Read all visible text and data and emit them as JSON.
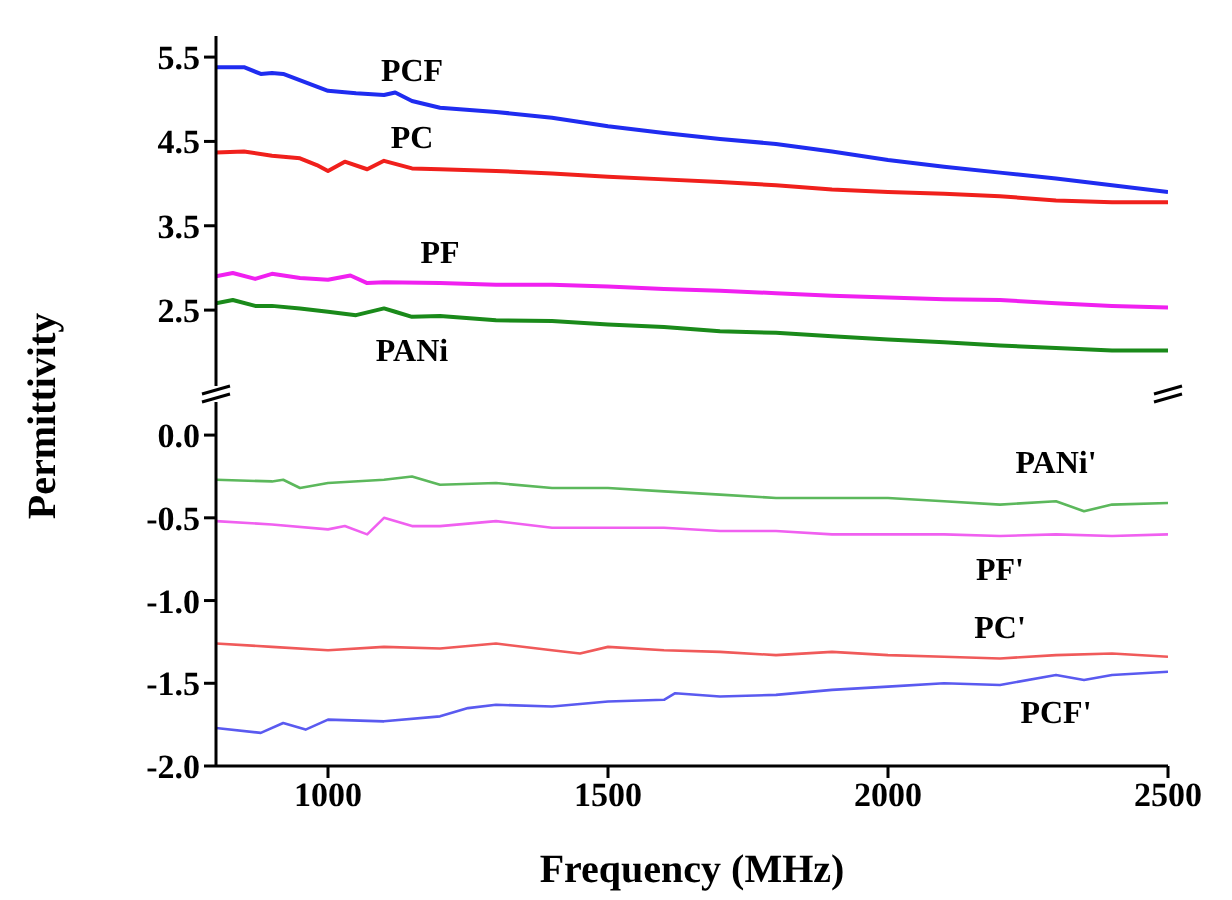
{
  "chart_data": [
    {
      "type": "line",
      "ylabel": "Permittivity",
      "xlim": [
        800,
        2500
      ],
      "ylim": [
        1.6,
        5.75
      ],
      "yticks": [
        2.5,
        3.5,
        4.5,
        5.5
      ],
      "tick_labels": "y",
      "marker": "none",
      "line_style": "solid",
      "series": [
        {
          "name": "PCF",
          "color": "#1f2cf0",
          "x": [
            800,
            850,
            880,
            900,
            920,
            1000,
            1050,
            1100,
            1120,
            1150,
            1200,
            1300,
            1400,
            1500,
            1600,
            1700,
            1800,
            1900,
            2000,
            2100,
            2200,
            2300,
            2400,
            2500
          ],
          "values": [
            5.38,
            5.38,
            5.3,
            5.31,
            5.3,
            5.1,
            5.07,
            5.05,
            5.08,
            4.98,
            4.9,
            4.85,
            4.78,
            4.68,
            4.6,
            4.53,
            4.47,
            4.38,
            4.28,
            4.2,
            4.13,
            4.06,
            3.98,
            3.9
          ]
        },
        {
          "name": "PC",
          "color": "#f0201c",
          "x": [
            800,
            850,
            900,
            950,
            980,
            1000,
            1030,
            1070,
            1100,
            1150,
            1200,
            1300,
            1400,
            1500,
            1600,
            1700,
            1800,
            1900,
            2000,
            2100,
            2200,
            2300,
            2400,
            2500
          ],
          "values": [
            4.37,
            4.38,
            4.33,
            4.3,
            4.22,
            4.15,
            4.26,
            4.17,
            4.27,
            4.18,
            4.17,
            4.15,
            4.12,
            4.08,
            4.05,
            4.02,
            3.98,
            3.93,
            3.9,
            3.88,
            3.85,
            3.8,
            3.78,
            3.78
          ]
        },
        {
          "name": "PF",
          "color": "#f020f0",
          "x": [
            800,
            830,
            870,
            900,
            950,
            1000,
            1040,
            1070,
            1100,
            1200,
            1300,
            1400,
            1500,
            1600,
            1700,
            1800,
            1900,
            2000,
            2100,
            2200,
            2300,
            2400,
            2500
          ],
          "values": [
            2.9,
            2.94,
            2.87,
            2.93,
            2.88,
            2.86,
            2.91,
            2.82,
            2.83,
            2.82,
            2.8,
            2.8,
            2.78,
            2.75,
            2.73,
            2.7,
            2.67,
            2.65,
            2.63,
            2.62,
            2.58,
            2.55,
            2.53
          ]
        },
        {
          "name": "PANi",
          "color": "#1a8a1a",
          "x": [
            800,
            830,
            870,
            900,
            950,
            1000,
            1050,
            1100,
            1120,
            1150,
            1200,
            1300,
            1400,
            1500,
            1600,
            1700,
            1800,
            1900,
            2000,
            2100,
            2200,
            2300,
            2400,
            2500
          ],
          "values": [
            2.58,
            2.62,
            2.55,
            2.55,
            2.52,
            2.48,
            2.44,
            2.52,
            2.48,
            2.42,
            2.43,
            2.38,
            2.37,
            2.33,
            2.3,
            2.25,
            2.23,
            2.19,
            2.15,
            2.12,
            2.08,
            2.05,
            2.02,
            2.02
          ]
        }
      ]
    },
    {
      "type": "line",
      "xlabel": "Frequency (MHz)",
      "xlim": [
        800,
        2500
      ],
      "xticks": [
        1000,
        1500,
        2000,
        2500
      ],
      "ylim": [
        -2,
        0.2
      ],
      "yticks": [
        {
          "value": 0,
          "label": "0.0"
        },
        -0.5,
        {
          "value": -1,
          "label": "-1.0"
        },
        -1.5,
        {
          "value": -2,
          "label": "-2.0"
        }
      ],
      "marker": "none",
      "line_style": "solid",
      "series": [
        {
          "name": "PANi'",
          "color": "#5cb85c",
          "x": [
            800,
            900,
            920,
            950,
            1000,
            1100,
            1150,
            1200,
            1300,
            1400,
            1500,
            1600,
            1700,
            1800,
            1900,
            2000,
            2100,
            2200,
            2300,
            2350,
            2400,
            2500
          ],
          "values": [
            -0.27,
            -0.28,
            -0.27,
            -0.32,
            -0.29,
            -0.27,
            -0.25,
            -0.3,
            -0.29,
            -0.32,
            -0.32,
            -0.34,
            -0.36,
            -0.38,
            -0.38,
            -0.38,
            -0.4,
            -0.42,
            -0.4,
            -0.46,
            -0.42,
            -0.41
          ]
        },
        {
          "name": "PF'",
          "color": "#f060f0",
          "x": [
            800,
            900,
            1000,
            1030,
            1070,
            1100,
            1150,
            1200,
            1300,
            1400,
            1500,
            1600,
            1700,
            1800,
            1900,
            2000,
            2100,
            2200,
            2300,
            2400,
            2500
          ],
          "values": [
            -0.52,
            -0.54,
            -0.57,
            -0.55,
            -0.6,
            -0.5,
            -0.55,
            -0.55,
            -0.52,
            -0.56,
            -0.56,
            -0.56,
            -0.58,
            -0.58,
            -0.6,
            -0.6,
            -0.6,
            -0.61,
            -0.6,
            -0.61,
            -0.6
          ]
        },
        {
          "name": "PC'",
          "color": "#f05a5a",
          "x": [
            800,
            900,
            1000,
            1100,
            1200,
            1300,
            1400,
            1450,
            1500,
            1600,
            1700,
            1800,
            1900,
            2000,
            2100,
            2200,
            2300,
            2400,
            2500
          ],
          "values": [
            -1.26,
            -1.28,
            -1.3,
            -1.28,
            -1.29,
            -1.26,
            -1.3,
            -1.32,
            -1.28,
            -1.3,
            -1.31,
            -1.33,
            -1.31,
            -1.33,
            -1.34,
            -1.35,
            -1.33,
            -1.32,
            -1.34
          ]
        },
        {
          "name": "PCF'",
          "color": "#5a5af0",
          "x": [
            800,
            880,
            920,
            960,
            1000,
            1100,
            1200,
            1250,
            1300,
            1400,
            1500,
            1600,
            1620,
            1700,
            1800,
            1900,
            2000,
            2100,
            2200,
            2300,
            2350,
            2400,
            2500
          ],
          "values": [
            -1.77,
            -1.8,
            -1.74,
            -1.78,
            -1.72,
            -1.73,
            -1.7,
            -1.65,
            -1.63,
            -1.64,
            -1.61,
            -1.6,
            -1.56,
            -1.58,
            -1.57,
            -1.54,
            -1.52,
            -1.5,
            -1.51,
            -1.45,
            -1.48,
            -1.45,
            -1.43
          ]
        }
      ]
    }
  ]
}
